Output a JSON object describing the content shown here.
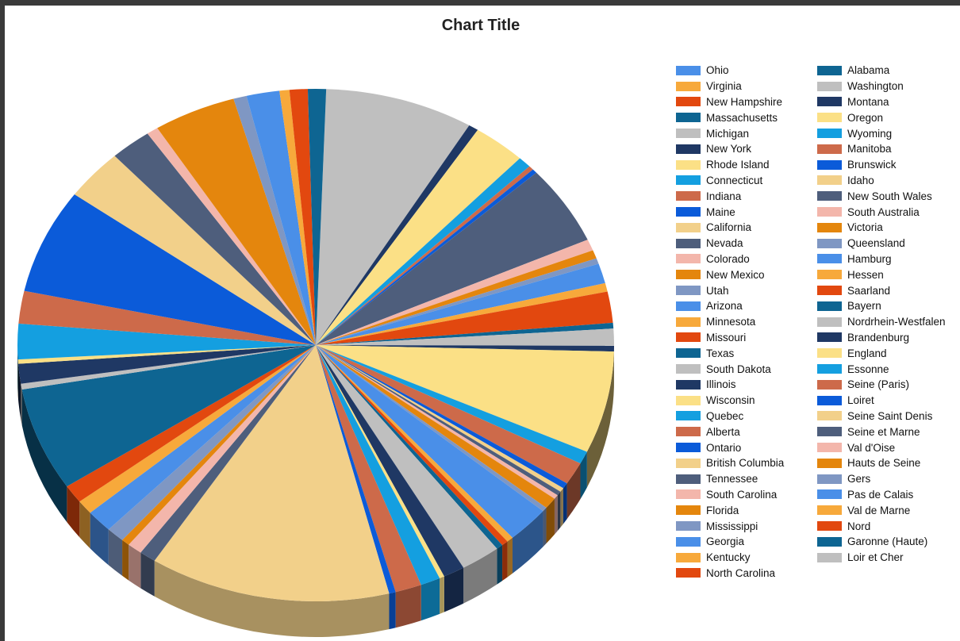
{
  "chart_data": {
    "type": "pie",
    "title": "Chart Title",
    "legend_position": "right",
    "three_d": true,
    "categories": [
      "Ohio",
      "Virginia",
      "New Hampshire",
      "Massachusetts",
      "Michigan",
      "New York",
      "Rhode Island",
      "Connecticut",
      "Indiana",
      "Maine",
      "California",
      "Nevada",
      "Colorado",
      "New Mexico",
      "Utah",
      "Arizona",
      "Minnesota",
      "Missouri",
      "Texas",
      "South Dakota",
      "Illinois",
      "Wisconsin",
      "Quebec",
      "Alberta",
      "Ontario",
      "British Columbia",
      "Tennessee",
      "South Carolina",
      "Florida",
      "Mississippi",
      "Georgia",
      "Kentucky",
      "North Carolina",
      "Alabama",
      "Washington",
      "Montana",
      "Oregon",
      "Wyoming",
      "Manitoba",
      "Brunswick",
      "Idaho",
      "New South Wales",
      "South Australia",
      "Victoria",
      "Queensland",
      "Hamburg",
      "Hessen",
      "Saarland",
      "Bayern",
      "Nordrhein-Westfalen",
      "Brandenburg",
      "England",
      "Essonne",
      "Seine (Paris)",
      "Loiret",
      "Seine Saint Denis",
      "Seine et Marne",
      "Val d'Oise",
      "Hauts de Seine",
      "Gers",
      "Pas de Calais",
      "Val de Marne",
      "Nord",
      "Garonne (Haute)",
      "Loir et Cher"
    ],
    "colors": [
      "#4a8fe8",
      "#f7a93b",
      "#e2480f",
      "#0e6592",
      "#bfbfbf",
      "#1f3864",
      "#fbe086",
      "#149fe0",
      "#cd6a4a",
      "#0b5bd9",
      "#f2d08a",
      "#4e5e7c",
      "#f3b6ab",
      "#e4860d",
      "#7f97c3",
      "#4a8fe8",
      "#f7a93b",
      "#e2480f",
      "#0e6592",
      "#bfbfbf",
      "#1f3864",
      "#fbe086",
      "#149fe0",
      "#cd6a4a",
      "#0b5bd9",
      "#f2d08a",
      "#4e5e7c",
      "#f3b6ab",
      "#e4860d",
      "#7f97c3",
      "#4a8fe8",
      "#f7a93b",
      "#e2480f",
      "#0e6592",
      "#bfbfbf",
      "#1f3864",
      "#fbe086",
      "#149fe0",
      "#cd6a4a",
      "#0b5bd9",
      "#f2d08a",
      "#4e5e7c",
      "#f3b6ab",
      "#e4860d",
      "#7f97c3",
      "#4a8fe8",
      "#f7a93b",
      "#e2480f",
      "#0e6592",
      "#bfbfbf",
      "#1f3864",
      "#fbe086",
      "#149fe0",
      "#cd6a4a",
      "#0b5bd9",
      "#f2d08a",
      "#4e5e7c",
      "#f3b6ab",
      "#e4860d",
      "#7f97c3",
      "#4a8fe8",
      "#f7a93b",
      "#e2480f",
      "#0e6592",
      "#bfbfbf"
    ],
    "slices": [
      {
        "color": "#bfbfbf",
        "value": 9.0
      },
      {
        "color": "#1f3864",
        "value": 0.6
      },
      {
        "color": "#fbe086",
        "value": 3.2
      },
      {
        "color": "#149fe0",
        "value": 0.8
      },
      {
        "color": "#cd6a4a",
        "value": 0.3
      },
      {
        "color": "#0b5bd9",
        "value": 0.3
      },
      {
        "color": "#4e5e7c",
        "value": 5.6
      },
      {
        "color": "#f3b6ab",
        "value": 0.8
      },
      {
        "color": "#e4860d",
        "value": 0.6
      },
      {
        "color": "#7f97c3",
        "value": 0.4
      },
      {
        "color": "#4a8fe8",
        "value": 1.4
      },
      {
        "color": "#f7a93b",
        "value": 0.6
      },
      {
        "color": "#e2480f",
        "value": 2.2
      },
      {
        "color": "#0e6592",
        "value": 0.4
      },
      {
        "color": "#bfbfbf",
        "value": 1.2
      },
      {
        "color": "#1f3864",
        "value": 0.4
      },
      {
        "color": "#fbe086",
        "value": 7.2
      },
      {
        "color": "#149fe0",
        "value": 0.9
      },
      {
        "color": "#cd6a4a",
        "value": 1.6
      },
      {
        "color": "#0b5bd9",
        "value": 0.4
      },
      {
        "color": "#f2d08a",
        "value": 0.3
      },
      {
        "color": "#4e5e7c",
        "value": 0.3
      },
      {
        "color": "#f3b6ab",
        "value": 0.3
      },
      {
        "color": "#e4860d",
        "value": 0.8
      },
      {
        "color": "#7f97c3",
        "value": 0.3
      },
      {
        "color": "#4a8fe8",
        "value": 2.6
      },
      {
        "color": "#f7a93b",
        "value": 0.4
      },
      {
        "color": "#e2480f",
        "value": 0.4
      },
      {
        "color": "#0e6592",
        "value": 0.4
      },
      {
        "color": "#bfbfbf",
        "value": 2.4
      },
      {
        "color": "#1f3864",
        "value": 1.3
      },
      {
        "color": "#fbe086",
        "value": 0.3
      },
      {
        "color": "#149fe0",
        "value": 1.2
      },
      {
        "color": "#cd6a4a",
        "value": 1.6
      },
      {
        "color": "#0b5bd9",
        "value": 0.4
      },
      {
        "color": "#f2d08a",
        "value": 14.6
      },
      {
        "color": "#4e5e7c",
        "value": 1.0
      },
      {
        "color": "#f3b6ab",
        "value": 0.9
      },
      {
        "color": "#e4860d",
        "value": 0.5
      },
      {
        "color": "#7f97c3",
        "value": 1.1
      },
      {
        "color": "#4a8fe8",
        "value": 1.6
      },
      {
        "color": "#f7a93b",
        "value": 1.0
      },
      {
        "color": "#e2480f",
        "value": 1.3
      },
      {
        "color": "#0e6592",
        "value": 7.3
      },
      {
        "color": "#bfbfbf",
        "value": 0.4
      },
      {
        "color": "#1f3864",
        "value": 1.4
      },
      {
        "color": "#fbe086",
        "value": 0.3
      },
      {
        "color": "#149fe0",
        "value": 2.5
      },
      {
        "color": "#cd6a4a",
        "value": 2.3
      },
      {
        "color": "#0b5bd9",
        "value": 7.4
      },
      {
        "color": "#f2d08a",
        "value": 3.6
      },
      {
        "color": "#4e5e7c",
        "value": 2.5
      },
      {
        "color": "#f3b6ab",
        "value": 0.7
      },
      {
        "color": "#e4860d",
        "value": 5.0
      },
      {
        "color": "#7f97c3",
        "value": 0.8
      },
      {
        "color": "#4a8fe8",
        "value": 2.0
      },
      {
        "color": "#f7a93b",
        "value": 0.6
      },
      {
        "color": "#e2480f",
        "value": 1.1
      },
      {
        "color": "#0e6592",
        "value": 1.1
      }
    ]
  }
}
